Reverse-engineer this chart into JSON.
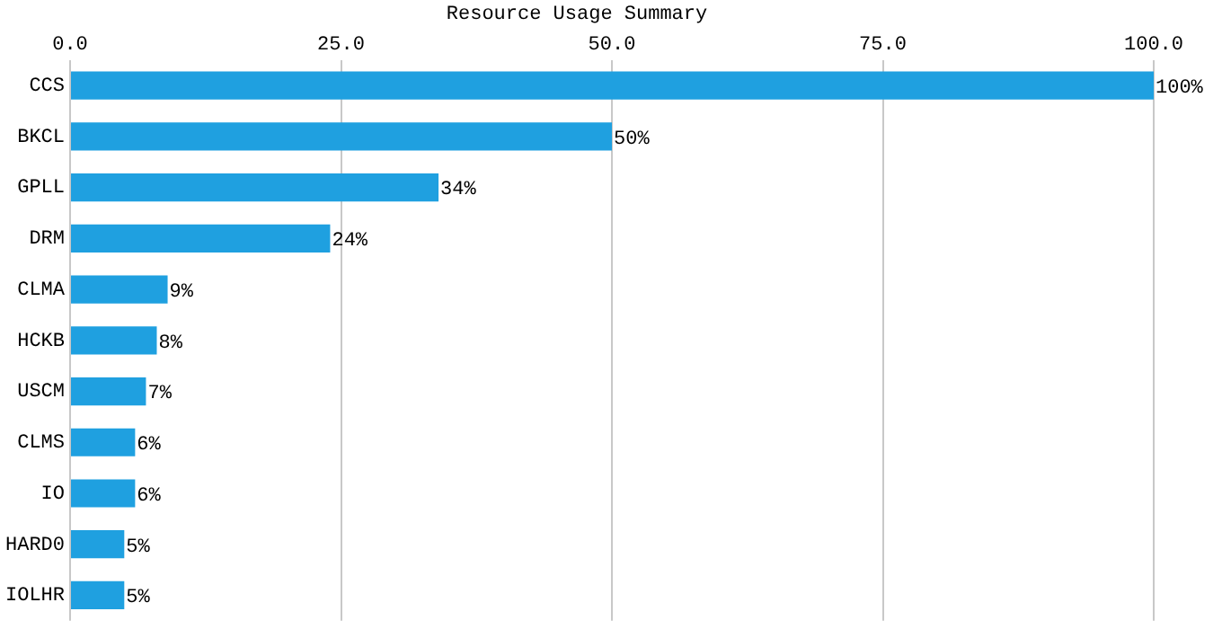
{
  "chart_data": {
    "type": "bar",
    "orientation": "horizontal",
    "title": "Resource Usage Summary",
    "categories": [
      "CCS",
      "BKCL",
      "GPLL",
      "DRM",
      "CLMA",
      "HCKB",
      "USCM",
      "CLMS",
      "IO",
      "HARD0",
      "IOLHR"
    ],
    "values": [
      100,
      50,
      34,
      24,
      9,
      8,
      7,
      6,
      6,
      5,
      5
    ],
    "value_labels": [
      "100%",
      "50%",
      "34%",
      "24%",
      "9%",
      "8%",
      "7%",
      "6%",
      "6%",
      "5%",
      "5%"
    ],
    "color": "#1fa0e0",
    "xlim": [
      0,
      100
    ],
    "xticks": [
      {
        "value": 0,
        "label": "0.0"
      },
      {
        "value": 25,
        "label": "25.0"
      },
      {
        "value": 50,
        "label": "50.0"
      },
      {
        "value": 75,
        "label": "75.0"
      },
      {
        "value": 100,
        "label": "100.0"
      }
    ],
    "grid": "x",
    "legend": false
  }
}
